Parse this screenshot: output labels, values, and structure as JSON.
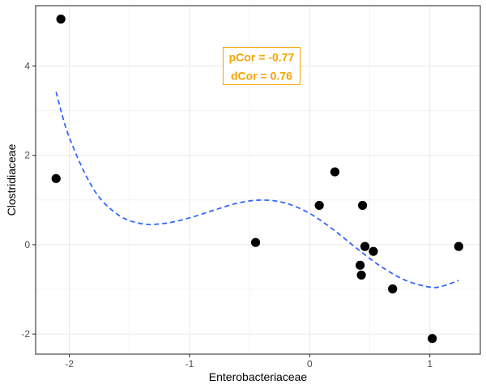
{
  "chart_data": {
    "type": "scatter",
    "xlabel": "Enterobacteriaceae",
    "ylabel": "Clostridiaceae",
    "xlim": [
      -2.28,
      1.42
    ],
    "ylim": [
      -2.45,
      5.35
    ],
    "x_ticks": [
      -2,
      -1,
      0,
      1
    ],
    "y_ticks": [
      -2,
      0,
      2,
      4
    ],
    "x_tick_labels": [
      "-2",
      "-1",
      "0",
      "1"
    ],
    "y_tick_labels": [
      "-2",
      "0",
      "2",
      "4"
    ],
    "grid": true,
    "points": [
      {
        "x": -2.07,
        "y": 5.05
      },
      {
        "x": -2.11,
        "y": 1.48
      },
      {
        "x": -0.45,
        "y": 0.05
      },
      {
        "x": 0.08,
        "y": 0.88
      },
      {
        "x": 0.21,
        "y": 1.63
      },
      {
        "x": 0.44,
        "y": 0.88
      },
      {
        "x": 0.46,
        "y": -0.04
      },
      {
        "x": 0.53,
        "y": -0.15
      },
      {
        "x": 0.42,
        "y": -0.46
      },
      {
        "x": 0.43,
        "y": -0.68
      },
      {
        "x": 0.69,
        "y": -0.99
      },
      {
        "x": 1.02,
        "y": -2.1
      },
      {
        "x": 1.24,
        "y": -0.04
      }
    ],
    "fit_line": {
      "style": "dashed",
      "points": [
        {
          "x": -2.11,
          "y": 3.42
        },
        {
          "x": -2.0,
          "y": 2.4
        },
        {
          "x": -1.8,
          "y": 1.25
        },
        {
          "x": -1.6,
          "y": 0.68
        },
        {
          "x": -1.4,
          "y": 0.47
        },
        {
          "x": -1.2,
          "y": 0.48
        },
        {
          "x": -1.0,
          "y": 0.6
        },
        {
          "x": -0.8,
          "y": 0.77
        },
        {
          "x": -0.6,
          "y": 0.93
        },
        {
          "x": -0.4,
          "y": 1.0
        },
        {
          "x": -0.2,
          "y": 0.93
        },
        {
          "x": 0.0,
          "y": 0.7
        },
        {
          "x": 0.2,
          "y": 0.33
        },
        {
          "x": 0.4,
          "y": -0.1
        },
        {
          "x": 0.6,
          "y": -0.5
        },
        {
          "x": 0.8,
          "y": -0.8
        },
        {
          "x": 1.0,
          "y": -0.95
        },
        {
          "x": 1.1,
          "y": -0.93
        },
        {
          "x": 1.24,
          "y": -0.8
        }
      ]
    },
    "annotation": {
      "lines": [
        "pCor = -0.77",
        "dCor = 0.76"
      ],
      "x": -0.4,
      "y": 4.0
    }
  },
  "colors": {
    "points": "#000000",
    "fit_line": "#3366ff",
    "annotation": "#f5a300",
    "grid": "#ebebeb",
    "panel_border": "#333333"
  }
}
